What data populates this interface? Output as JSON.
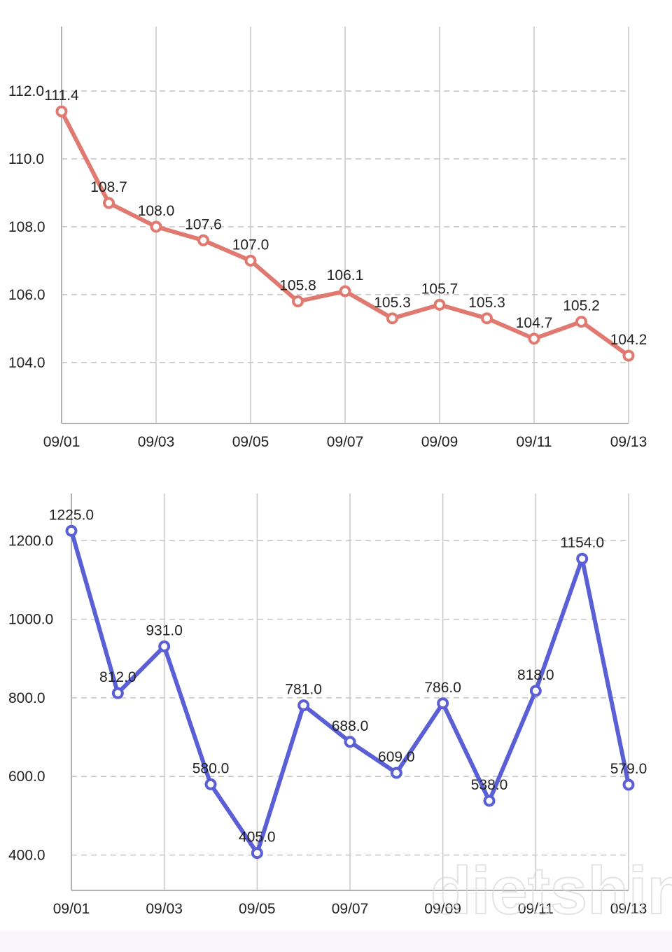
{
  "watermark": "dietshin.com",
  "chart_data": [
    {
      "type": "line",
      "categories": [
        "09/01",
        "09/02",
        "09/03",
        "09/04",
        "09/05",
        "09/06",
        "09/07",
        "09/08",
        "09/09",
        "09/10",
        "09/11",
        "09/12",
        "09/13"
      ],
      "x_tick_labels": [
        "09/01",
        "09/03",
        "09/05",
        "09/07",
        "09/09",
        "09/11",
        "09/13"
      ],
      "values": [
        111.4,
        108.7,
        108.0,
        107.6,
        107.0,
        105.8,
        106.1,
        105.3,
        105.7,
        105.3,
        104.7,
        105.2,
        104.2
      ],
      "value_labels": [
        "111.4",
        "108.7",
        "108.0",
        "107.6",
        "107.0",
        "105.8",
        "106.1",
        "105.3",
        "105.7",
        "105.3",
        "104.7",
        "105.2",
        "104.2"
      ],
      "y_ticks": [
        104.0,
        106.0,
        108.0,
        110.0,
        112.0
      ],
      "y_tick_labels": [
        "104.0",
        "106.0",
        "108.0",
        "110.0",
        "112.0"
      ],
      "ylim": [
        102.2,
        113.9
      ],
      "color": "#e07a70",
      "grid": true,
      "title": "",
      "xlabel": "",
      "ylabel": ""
    },
    {
      "type": "line",
      "categories": [
        "09/01",
        "09/02",
        "09/03",
        "09/04",
        "09/05",
        "09/06",
        "09/07",
        "09/08",
        "09/09",
        "09/10",
        "09/11",
        "09/12",
        "09/13"
      ],
      "x_tick_labels": [
        "09/01",
        "09/03",
        "09/05",
        "09/07",
        "09/09",
        "09/11",
        "09/13"
      ],
      "values": [
        1225.0,
        812.0,
        931.0,
        580.0,
        405.0,
        781.0,
        688.0,
        609.0,
        786.0,
        538.0,
        818.0,
        1154.0,
        579.0
      ],
      "value_labels": [
        "1225.0",
        "812.0",
        "931.0",
        "580.0",
        "405.0",
        "781.0",
        "688.0",
        "609.0",
        "786.0",
        "538.0",
        "818.0",
        "1154.0",
        "579.0"
      ],
      "y_ticks": [
        400.0,
        600.0,
        800.0,
        1000.0,
        1200.0
      ],
      "y_tick_labels": [
        "400.0",
        "600.0",
        "800.0",
        "1000.0",
        "1200.0"
      ],
      "ylim": [
        310,
        1320
      ],
      "color": "#5b5fd6",
      "grid": true,
      "title": "",
      "xlabel": "",
      "ylabel": ""
    }
  ]
}
